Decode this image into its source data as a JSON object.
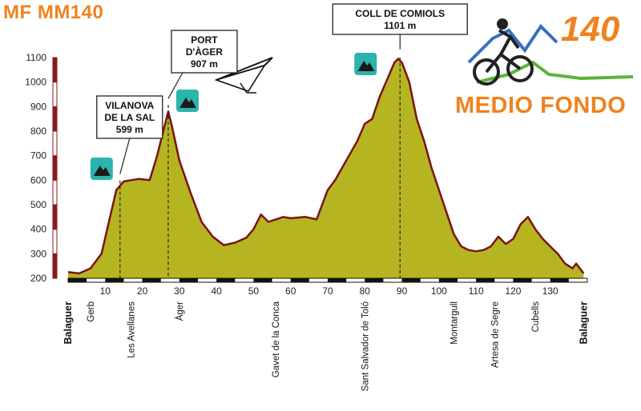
{
  "header": {
    "title": "MF MM140",
    "logo_number": "140",
    "logo_text": "MEDIO FONDO"
  },
  "colors": {
    "title": "#f0821e",
    "area_fill": "#b5b521",
    "profile_line": "#7a1414",
    "logo_blue": "#3a6fc2",
    "logo_green": "#5cb33a",
    "icon_teal": "#2bb3ad"
  },
  "icons": [
    "mountain-icon",
    "hang-glider-icon",
    "cyclist-icon"
  ],
  "chart_data": {
    "type": "area",
    "xlabel": "",
    "ylabel": "",
    "xlim": [
      0,
      140
    ],
    "ylim": [
      200,
      1100
    ],
    "yticks": [
      200,
      300,
      400,
      500,
      600,
      700,
      800,
      900,
      1000,
      1100
    ],
    "xticks": [
      10,
      20,
      30,
      40,
      50,
      60,
      70,
      80,
      90,
      100,
      110,
      120,
      130
    ],
    "grid": false,
    "x": [
      0,
      3,
      6,
      9,
      11,
      13,
      15,
      17,
      19,
      22,
      24,
      26,
      27,
      28,
      30,
      33,
      36,
      39,
      42,
      45,
      48,
      50,
      52,
      54,
      56,
      58,
      60,
      64,
      67,
      70,
      72,
      75,
      78,
      80,
      82,
      84,
      86,
      88,
      89,
      90,
      92,
      94,
      96,
      98,
      100,
      102,
      104,
      106,
      108,
      110,
      112,
      114,
      116,
      118,
      120,
      122,
      124,
      126,
      128,
      130,
      132,
      134,
      136,
      137,
      139
    ],
    "elevation": [
      225,
      220,
      240,
      300,
      430,
      560,
      595,
      600,
      605,
      600,
      700,
      820,
      880,
      820,
      680,
      550,
      430,
      370,
      335,
      345,
      365,
      400,
      460,
      430,
      440,
      450,
      445,
      450,
      440,
      560,
      600,
      680,
      760,
      830,
      850,
      940,
      1010,
      1080,
      1095,
      1080,
      1000,
      850,
      760,
      650,
      560,
      470,
      380,
      330,
      315,
      310,
      315,
      330,
      370,
      340,
      360,
      420,
      450,
      400,
      360,
      330,
      300,
      260,
      240,
      260,
      220
    ],
    "callouts": [
      {
        "lines": [
          "VILANOVA",
          "DE LA SAL",
          "599 m"
        ],
        "km": 14,
        "elevation": 599
      },
      {
        "lines": [
          "PORT",
          "D'ÀGER",
          "907 m"
        ],
        "km": 27,
        "elevation": 907
      },
      {
        "lines": [
          "COLL DE COMIOLS",
          "1101 m"
        ],
        "km": 89.5,
        "elevation": 1101
      }
    ],
    "towns": [
      {
        "name": "Balaguer",
        "km": 0,
        "bold": true
      },
      {
        "name": "Gerb",
        "km": 6,
        "bold": false
      },
      {
        "name": "Les Avellanes",
        "km": 17,
        "bold": false
      },
      {
        "name": "Àger",
        "km": 30,
        "bold": false
      },
      {
        "name": "Gavet de la Conca",
        "km": 56,
        "bold": false
      },
      {
        "name": "Sant Salvador de Toló",
        "km": 80,
        "bold": false
      },
      {
        "name": "Montargull",
        "km": 104,
        "bold": false
      },
      {
        "name": "Artesa de Segre",
        "km": 115,
        "bold": false
      },
      {
        "name": "Cubells",
        "km": 126,
        "bold": false
      },
      {
        "name": "Balaguer",
        "km": 139,
        "bold": true
      }
    ]
  }
}
